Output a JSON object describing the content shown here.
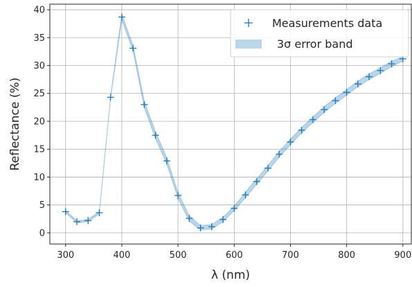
{
  "chart_data": {
    "type": "scatter",
    "xlabel": "λ (nm)",
    "ylabel": "Reflectance (%)",
    "xlim": [
      272,
      915
    ],
    "ylim": [
      -2,
      41
    ],
    "xticks": [
      300,
      400,
      500,
      600,
      700,
      800,
      900
    ],
    "yticks": [
      0,
      5,
      10,
      15,
      20,
      25,
      30,
      35,
      40
    ],
    "grid": true,
    "legend_position": "top-right",
    "series": [
      {
        "name": "Measurements data",
        "marker": "plus",
        "color": "#1f77b4",
        "x": [
          300,
          320,
          340,
          360,
          380,
          400,
          420,
          440,
          460,
          480,
          500,
          520,
          540,
          560,
          580,
          600,
          620,
          640,
          660,
          680,
          700,
          720,
          740,
          760,
          780,
          800,
          820,
          840,
          860,
          880,
          900
        ],
        "y": [
          3.8,
          2.0,
          2.2,
          3.6,
          24.3,
          38.7,
          33.1,
          23.0,
          17.5,
          12.9,
          6.7,
          2.6,
          0.9,
          1.1,
          2.4,
          4.4,
          6.8,
          9.2,
          11.6,
          14.1,
          16.3,
          18.4,
          20.3,
          22.1,
          23.7,
          25.2,
          26.7,
          28.0,
          29.1,
          30.3,
          31.2
        ]
      },
      {
        "name": "3σ error band",
        "style": "band",
        "color": "#1f77b4",
        "x": [
          300,
          320,
          340,
          360,
          380,
          400,
          420,
          440,
          460,
          480,
          500,
          520,
          540,
          560,
          580,
          600,
          620,
          640,
          660,
          680,
          700,
          720,
          740,
          760,
          780,
          800,
          820,
          840,
          860,
          880,
          900
        ],
        "lower": [
          3.6,
          1.8,
          2.0,
          3.4,
          24.1,
          38.2,
          32.6,
          22.4,
          16.9,
          12.3,
          6.2,
          2.1,
          0.5,
          0.7,
          2.0,
          4.0,
          6.3,
          8.7,
          11.1,
          13.6,
          15.8,
          17.9,
          19.8,
          21.6,
          23.2,
          24.7,
          26.2,
          27.5,
          28.6,
          29.8,
          30.8
        ],
        "upper": [
          4.0,
          2.2,
          2.4,
          3.8,
          24.5,
          39.2,
          33.6,
          23.6,
          18.1,
          13.5,
          7.2,
          3.1,
          1.3,
          1.5,
          2.8,
          4.8,
          7.3,
          9.7,
          12.1,
          14.6,
          16.8,
          18.9,
          20.8,
          22.6,
          24.2,
          25.7,
          27.2,
          28.5,
          29.6,
          30.8,
          31.6
        ]
      }
    ]
  }
}
